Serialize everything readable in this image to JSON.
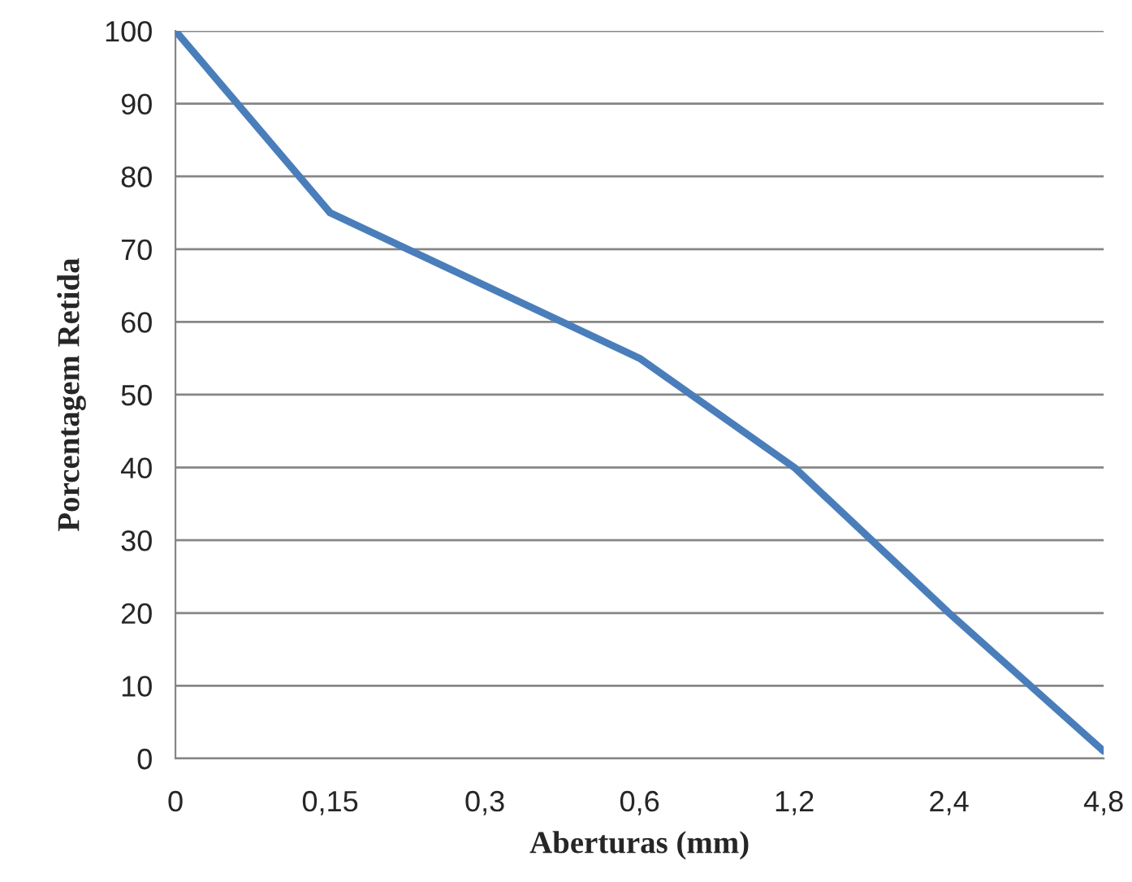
{
  "chart_data": {
    "type": "line",
    "xlabel": "Aberturas (mm)",
    "ylabel": "Porcentagem Retida",
    "categories": [
      "0",
      "0,15",
      "0,3",
      "0,6",
      "1,2",
      "2,4",
      "4,8"
    ],
    "series": [
      {
        "color": "#4a7ebb",
        "values": [
          100,
          75,
          65,
          55,
          40,
          20,
          1
        ]
      }
    ],
    "ylim": [
      0,
      100
    ],
    "yticks": [
      0,
      10,
      20,
      30,
      40,
      50,
      60,
      70,
      80,
      90,
      100
    ],
    "grid": "y",
    "marker": "none",
    "line_style": "solid"
  }
}
